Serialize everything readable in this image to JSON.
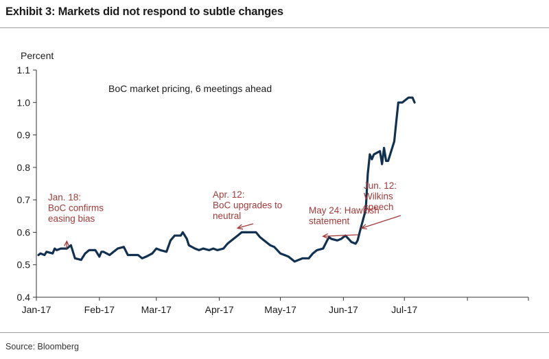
{
  "header": {
    "title": "Exhibit 3: Markets did not respond to subtle changes"
  },
  "footer": {
    "source": "Source: Bloomberg"
  },
  "colors": {
    "line": "#12304f",
    "annotation": "#a33a3a",
    "axis": "#333333"
  },
  "chart_data": {
    "type": "line",
    "title": "BoC market pricing, 6 meetings ahead",
    "ylabel": "Percent",
    "xlabel": "",
    "ylim": [
      0.4,
      1.1
    ],
    "xlim": [
      "2017-01-01",
      "2017-08-31"
    ],
    "yticks": [
      "0.4",
      "0.5",
      "0.6",
      "0.7",
      "0.8",
      "0.9",
      "1.0",
      "1.1"
    ],
    "xticks": [
      "Jan-17",
      "Feb-17",
      "Mar-17",
      "Apr-17",
      "May-17",
      "Jun-17",
      "Jul-17"
    ],
    "grid": false,
    "legend": "none",
    "series": [
      {
        "x": [
          "2017-01-02",
          "2017-01-03",
          "2017-01-05",
          "2017-01-06",
          "2017-01-09",
          "2017-01-10",
          "2017-01-11",
          "2017-01-13",
          "2017-01-16",
          "2017-01-18",
          "2017-01-19",
          "2017-01-20",
          "2017-01-23",
          "2017-01-25",
          "2017-01-27",
          "2017-01-30",
          "2017-02-01",
          "2017-02-02",
          "2017-02-03",
          "2017-02-06",
          "2017-02-08",
          "2017-02-10",
          "2017-02-13",
          "2017-02-15",
          "2017-02-17",
          "2017-02-20",
          "2017-02-22",
          "2017-02-24",
          "2017-02-27",
          "2017-03-01",
          "2017-03-03",
          "2017-03-06",
          "2017-03-08",
          "2017-03-10",
          "2017-03-13",
          "2017-03-14",
          "2017-03-16",
          "2017-03-17",
          "2017-03-20",
          "2017-03-22",
          "2017-03-24",
          "2017-03-27",
          "2017-03-29",
          "2017-03-31",
          "2017-04-03",
          "2017-04-05",
          "2017-04-07",
          "2017-04-10",
          "2017-04-12",
          "2017-04-14",
          "2017-04-17",
          "2017-04-19",
          "2017-04-21",
          "2017-04-24",
          "2017-04-26",
          "2017-04-28",
          "2017-05-01",
          "2017-05-03",
          "2017-05-05",
          "2017-05-08",
          "2017-05-10",
          "2017-05-12",
          "2017-05-15",
          "2017-05-17",
          "2017-05-19",
          "2017-05-22",
          "2017-05-24",
          "2017-05-25",
          "2017-05-26",
          "2017-05-29",
          "2017-05-31",
          "2017-06-02",
          "2017-06-05",
          "2017-06-07",
          "2017-06-08",
          "2017-06-09",
          "2017-06-12",
          "2017-06-13",
          "2017-06-14",
          "2017-06-15",
          "2017-06-16",
          "2017-06-19",
          "2017-06-20",
          "2017-06-21",
          "2017-06-22",
          "2017-06-23",
          "2017-06-26",
          "2017-06-27",
          "2017-06-28",
          "2017-06-29",
          "2017-06-30",
          "2017-07-03",
          "2017-07-04",
          "2017-07-05",
          "2017-07-06"
        ],
        "y": [
          0.53,
          0.535,
          0.53,
          0.54,
          0.535,
          0.55,
          0.545,
          0.55,
          0.55,
          0.56,
          0.54,
          0.52,
          0.515,
          0.535,
          0.545,
          0.545,
          0.525,
          0.54,
          0.54,
          0.53,
          0.54,
          0.55,
          0.555,
          0.53,
          0.53,
          0.53,
          0.52,
          0.525,
          0.535,
          0.55,
          0.545,
          0.54,
          0.575,
          0.59,
          0.59,
          0.6,
          0.58,
          0.56,
          0.55,
          0.545,
          0.55,
          0.545,
          0.55,
          0.545,
          0.55,
          0.565,
          0.575,
          0.59,
          0.6,
          0.6,
          0.6,
          0.6,
          0.585,
          0.57,
          0.56,
          0.555,
          0.535,
          0.53,
          0.525,
          0.51,
          0.515,
          0.52,
          0.52,
          0.535,
          0.545,
          0.55,
          0.575,
          0.585,
          0.58,
          0.575,
          0.58,
          0.59,
          0.57,
          0.565,
          0.575,
          0.6,
          0.67,
          0.78,
          0.84,
          0.825,
          0.84,
          0.85,
          0.81,
          0.86,
          0.82,
          0.82,
          0.88,
          0.94,
          1.0,
          1.0,
          1.0,
          1.015,
          1.015,
          1.015,
          1.0
        ]
      }
    ],
    "annotations": [
      {
        "lines": [
          "Jan. 18:",
          "BoC confirms",
          "easing bias"
        ],
        "x": "2017-01-18",
        "y": 0.56
      },
      {
        "lines": [
          "Apr. 12:",
          "BoC upgrades to",
          "neutral"
        ],
        "x": "2017-04-12",
        "y": 0.6
      },
      {
        "lines": [
          "May 24: Hawkish",
          "statement"
        ],
        "x": "2017-05-24",
        "y": 0.575
      },
      {
        "lines": [
          "Jun. 12:",
          "Wilkins",
          "speech"
        ],
        "x": "2017-06-12",
        "y": 0.6
      }
    ]
  }
}
